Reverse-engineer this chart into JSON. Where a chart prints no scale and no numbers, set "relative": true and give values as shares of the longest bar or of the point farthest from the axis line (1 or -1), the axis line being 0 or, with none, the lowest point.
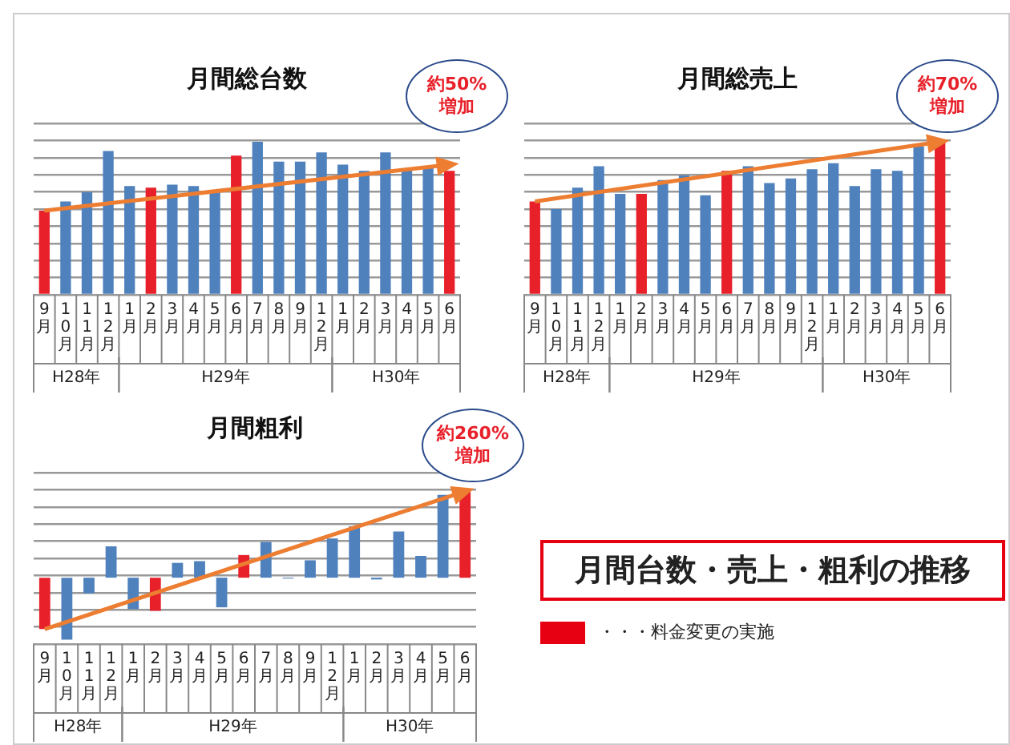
{
  "chart_data": [
    {
      "type": "bar",
      "title": "月間総台数",
      "relative": true,
      "grid": "y",
      "legend": false,
      "categories": [
        "9月",
        "10月",
        "11月",
        "12月",
        "1月",
        "2月",
        "3月",
        "4月",
        "5月",
        "6月",
        "7月",
        "8月",
        "9月",
        "12月",
        "1月",
        "2月",
        "3月",
        "4月",
        "5月",
        "6月"
      ],
      "annotations": [
        "約50%\n増加",
        "H28年",
        "H29年",
        "H30年"
      ],
      "series": [
        {
          "type": "bar",
          "values": [
            0.55,
            0.61,
            0.67,
            0.94,
            0.71,
            0.7,
            0.72,
            0.71,
            0.67,
            0.91,
            1,
            0.87,
            0.87,
            0.93,
            0.85,
            0.81,
            0.93,
            0.82,
            0.83,
            0.81
          ],
          "colors": [
            "#e8202a",
            "#4f81bd",
            "#4f81bd",
            "#4f81bd",
            "#4f81bd",
            "#e8202a",
            "#4f81bd",
            "#4f81bd",
            "#4f81bd",
            "#e8202a",
            "#4f81bd",
            "#4f81bd",
            "#4f81bd",
            "#4f81bd",
            "#4f81bd",
            "#4f81bd",
            "#4f81bd",
            "#4f81bd",
            "#4f81bd",
            "#e8202a"
          ]
        },
        {
          "type": "line",
          "color": "#ed7d31",
          "values": [
            0.55,
            null,
            null,
            null,
            null,
            null,
            null,
            null,
            null,
            null,
            null,
            null,
            null,
            null,
            null,
            null,
            null,
            null,
            null,
            0.85
          ]
        }
      ]
    },
    {
      "type": "bar",
      "title": "月間総売上",
      "relative": true,
      "grid": "y",
      "legend": false,
      "categories": [
        "9月",
        "10月",
        "11月",
        "12月",
        "1月",
        "2月",
        "3月",
        "4月",
        "5月",
        "6月",
        "7月",
        "8月",
        "9月",
        "12月",
        "1月",
        "2月",
        "3月",
        "4月",
        "5月",
        "6月"
      ],
      "annotations": [
        "約70%\n増加",
        "H28年",
        "H29年",
        "H30年"
      ],
      "series": [
        {
          "type": "bar",
          "values": [
            0.61,
            0.56,
            0.7,
            0.84,
            0.66,
            0.66,
            0.75,
            0.78,
            0.65,
            0.81,
            0.84,
            0.73,
            0.76,
            0.82,
            0.86,
            0.71,
            0.82,
            0.81,
            0.97,
            1
          ],
          "colors": [
            "#e8202a",
            "#4f81bd",
            "#4f81bd",
            "#4f81bd",
            "#4f81bd",
            "#e8202a",
            "#4f81bd",
            "#4f81bd",
            "#4f81bd",
            "#e8202a",
            "#4f81bd",
            "#4f81bd",
            "#4f81bd",
            "#4f81bd",
            "#4f81bd",
            "#4f81bd",
            "#4f81bd",
            "#4f81bd",
            "#4f81bd",
            "#e8202a"
          ]
        },
        {
          "type": "line",
          "color": "#ed7d31",
          "values": [
            0.61,
            null,
            null,
            null,
            null,
            null,
            null,
            null,
            null,
            null,
            null,
            null,
            null,
            null,
            null,
            null,
            null,
            null,
            null,
            1
          ]
        }
      ]
    },
    {
      "type": "bar",
      "title": "月間粗利",
      "relative": true,
      "grid": "y",
      "legend": false,
      "categories": [
        "9月",
        "10月",
        "11月",
        "12月",
        "1月",
        "2月",
        "3月",
        "4月",
        "5月",
        "6月",
        "7月",
        "8月",
        "9月",
        "12月",
        "1月",
        "2月",
        "3月",
        "4月",
        "5月",
        "6月"
      ],
      "annotations": [
        "約260%\n増加",
        "H28年",
        "H29年",
        "H30年"
      ],
      "series": [
        {
          "type": "bar",
          "values": [
            -0.59,
            -0.71,
            -0.18,
            0.36,
            -0.36,
            -0.38,
            0.17,
            0.19,
            -0.34,
            0.26,
            0.41,
            -0.01,
            0.2,
            0.45,
            0.59,
            -0.02,
            0.53,
            0.25,
            0.95,
            1
          ],
          "colors": [
            "#e8202a",
            "#4f81bd",
            "#4f81bd",
            "#4f81bd",
            "#4f81bd",
            "#e8202a",
            "#4f81bd",
            "#4f81bd",
            "#4f81bd",
            "#e8202a",
            "#4f81bd",
            "#4f81bd",
            "#4f81bd",
            "#4f81bd",
            "#4f81bd",
            "#4f81bd",
            "#4f81bd",
            "#4f81bd",
            "#4f81bd",
            "#e8202a"
          ]
        },
        {
          "type": "line",
          "color": "#ed7d31",
          "values": [
            -0.59,
            null,
            null,
            null,
            null,
            null,
            null,
            null,
            null,
            null,
            null,
            null,
            null,
            null,
            null,
            null,
            null,
            null,
            null,
            0.99
          ]
        }
      ]
    },
    {
      "type": "other",
      "title": "月間台数・売上・粗利の推移",
      "annotations": [
        "・・・料金変更の実施"
      ]
    }
  ]
}
